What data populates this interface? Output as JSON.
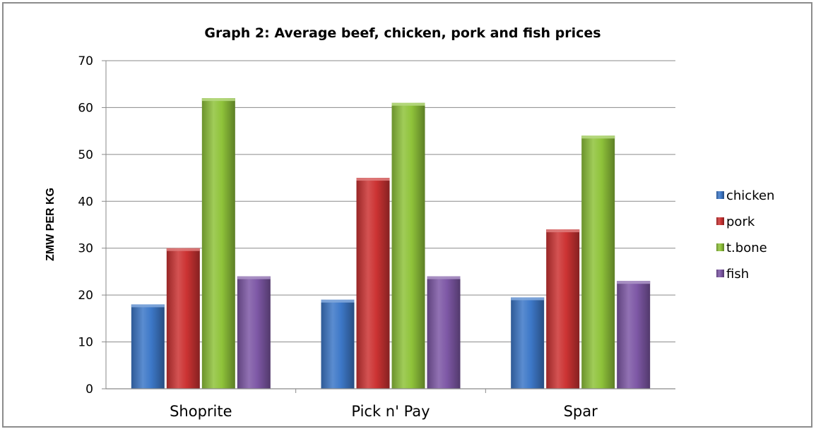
{
  "chart_data": {
    "type": "bar",
    "title": "Graph 2: Average beef, chicken, pork and fish prices",
    "xlabel": "",
    "ylabel": "ZMW PER KG",
    "ylim": [
      0,
      70
    ],
    "yticks": [
      0,
      10,
      20,
      30,
      40,
      50,
      60,
      70
    ],
    "grid": true,
    "legend_position": "right",
    "categories": [
      "Shoprite",
      "Pick n' Pay",
      "Spar"
    ],
    "series": [
      {
        "name": "chicken",
        "values": [
          18,
          19,
          19.5
        ],
        "color": "#3d78c8"
      },
      {
        "name": "pork",
        "values": [
          30,
          45,
          34
        ],
        "color": "#cc3333"
      },
      {
        "name": "t.bone",
        "values": [
          62,
          61,
          54
        ],
        "color": "#8fc33a"
      },
      {
        "name": "fish",
        "values": [
          24,
          24,
          23
        ],
        "color": "#7e58a6"
      }
    ]
  }
}
